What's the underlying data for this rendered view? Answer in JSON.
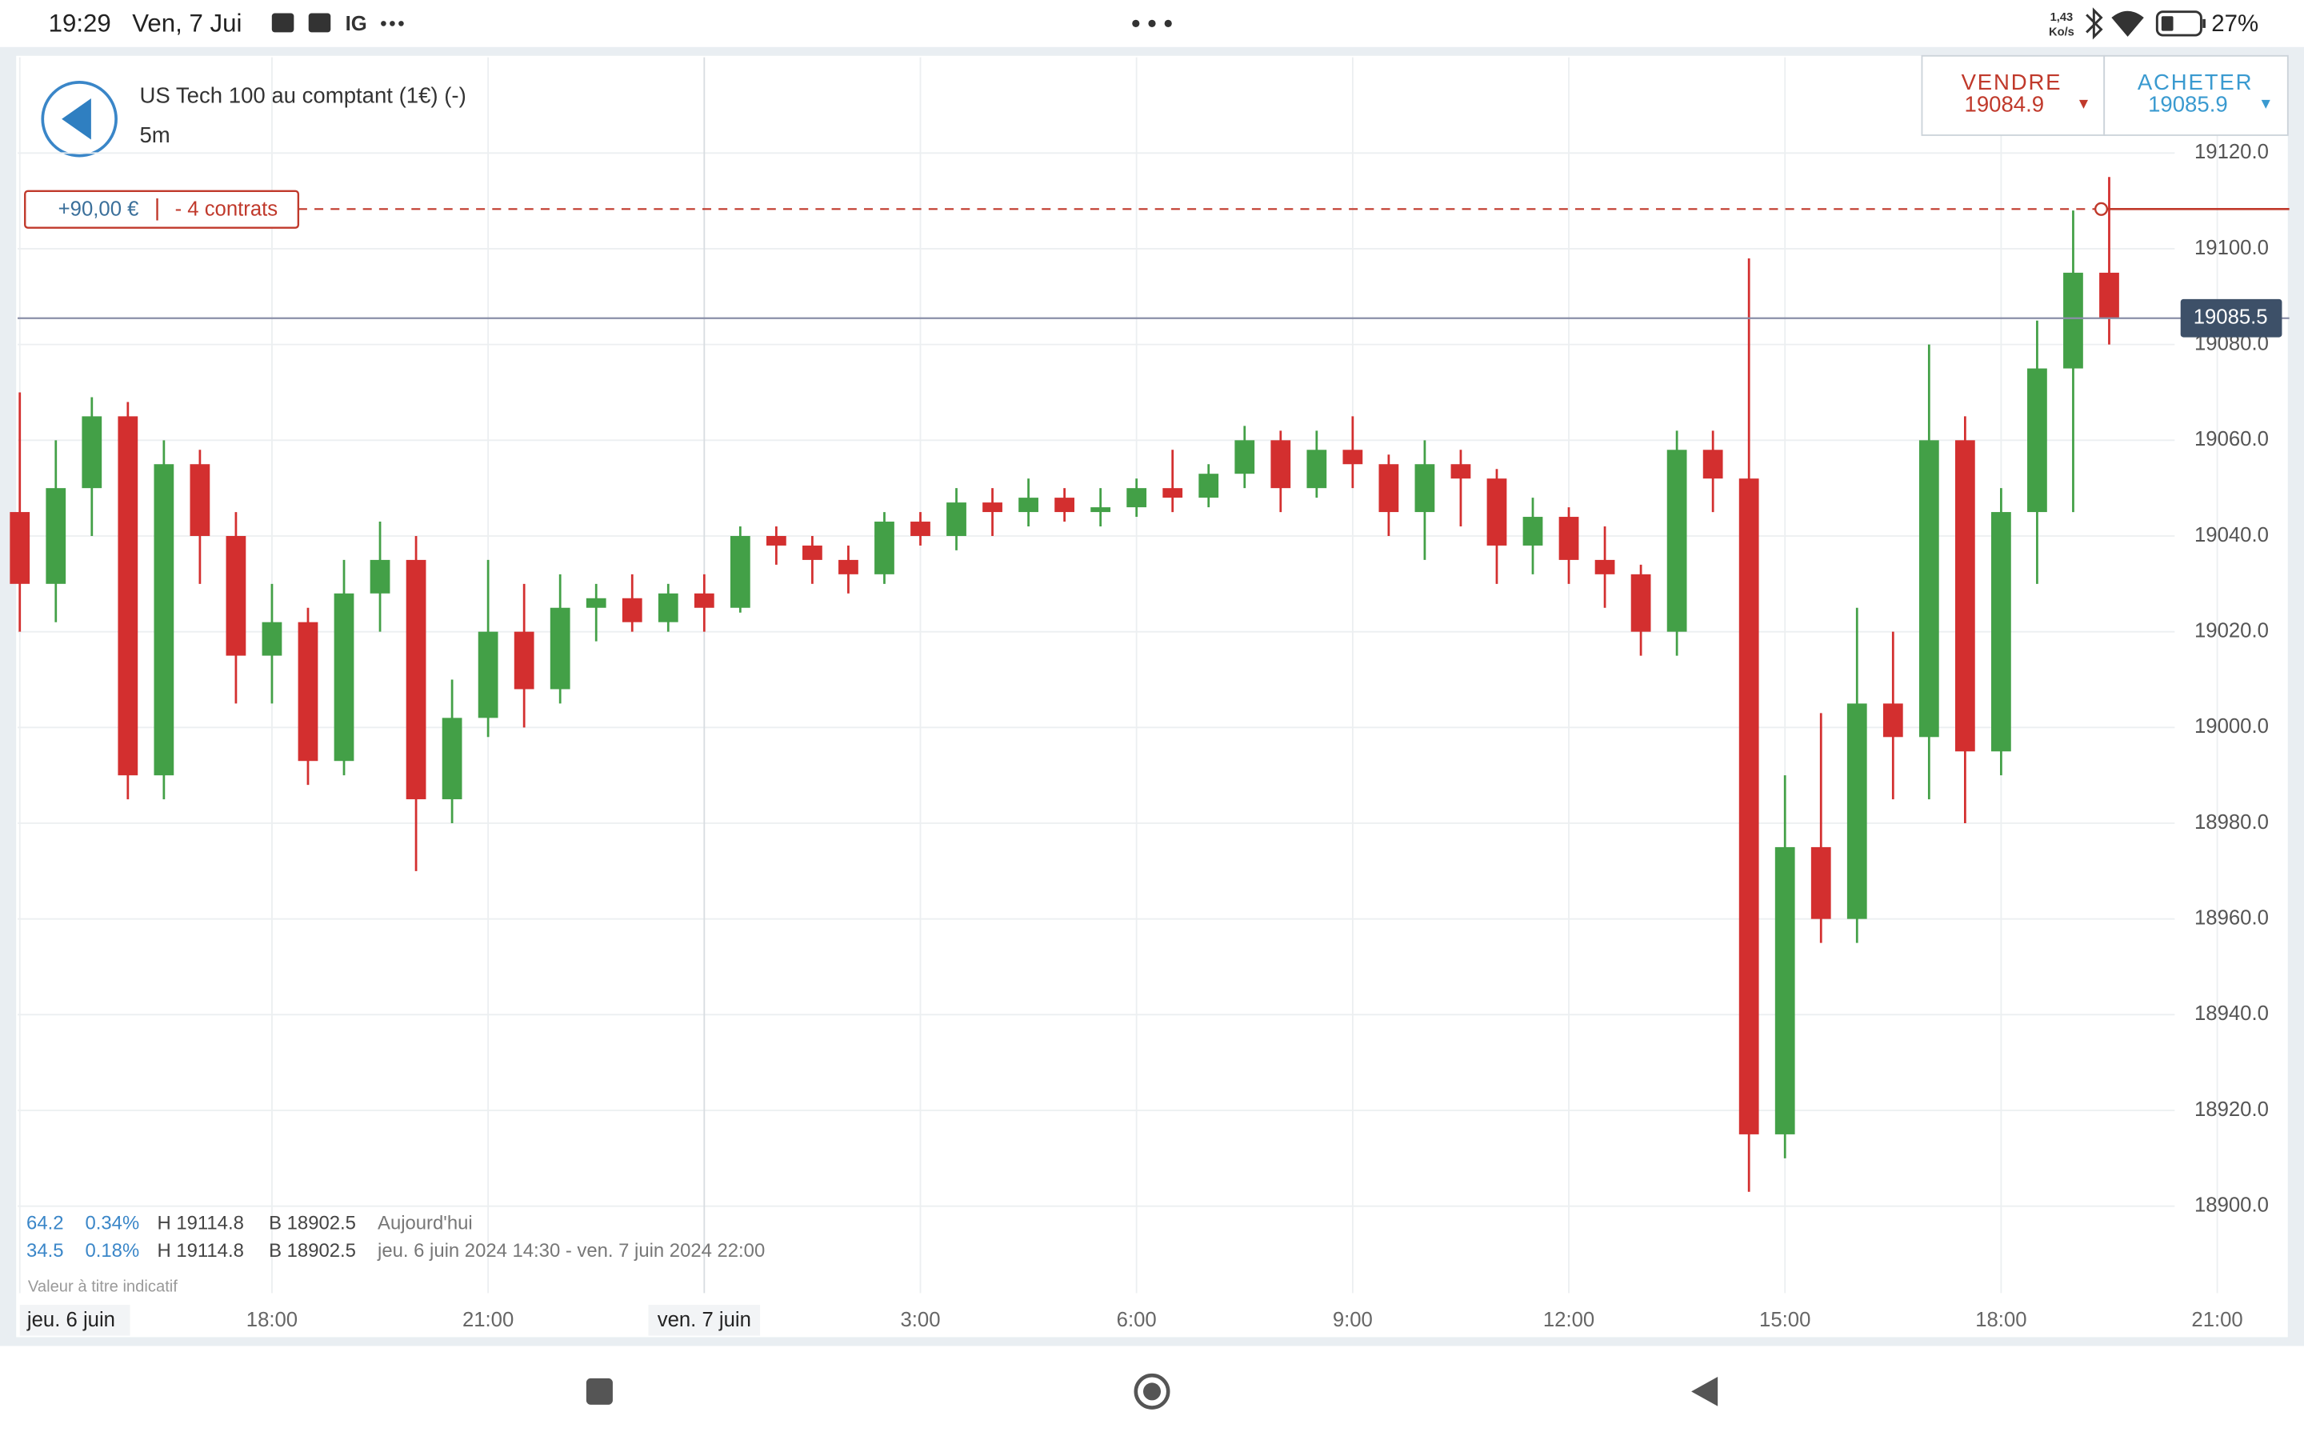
{
  "status_bar": {
    "time": "19:29",
    "date": "Ven, 7 Jui",
    "app": "IG",
    "speed": "1,43",
    "speed_unit": "Ko/s",
    "battery": "27%"
  },
  "header": {
    "title": "US Tech 100 au comptant (1€) (-)",
    "interval": "5m"
  },
  "trade": {
    "sell_label": "VENDRE",
    "sell_price": "19084.9",
    "buy_label": "ACHETER",
    "buy_price": "19085.9"
  },
  "position": {
    "pnl": "+90,00 €",
    "size": "- 4 contrats"
  },
  "stats": {
    "rows": [
      [
        "64.2",
        "0.34%",
        "H 19114.8",
        "B 18902.5",
        "Aujourd'hui"
      ],
      [
        "34.5",
        "0.18%",
        "H 19114.8",
        "B 18902.5",
        "jeu. 6 juin 2024 14:30 - ven. 7 juin 2024 22:00"
      ]
    ],
    "note": "Valeur à titre indicatif"
  },
  "chart_data": {
    "type": "candlestick",
    "grid": true,
    "xlim": [
      14.47,
      46
    ],
    "ylim": [
      18880,
      19140
    ],
    "xticks": [
      {
        "value": 14.5,
        "label": "jeu. 6 juin"
      },
      {
        "value": 18,
        "label": "18:00"
      },
      {
        "value": 21,
        "label": "21:00"
      },
      {
        "value": 24,
        "label": "ven. 7 juin"
      },
      {
        "value": 27,
        "label": "3:00"
      },
      {
        "value": 30,
        "label": "6:00"
      },
      {
        "value": 33,
        "label": "9:00"
      },
      {
        "value": 36,
        "label": "12:00"
      },
      {
        "value": 39,
        "label": "15:00"
      },
      {
        "value": 42,
        "label": "18:00"
      },
      {
        "value": 45,
        "label": "21:00"
      }
    ],
    "yticks": [
      {
        "value": 18900,
        "label": "18900.0"
      },
      {
        "value": 18920,
        "label": "18920.0"
      },
      {
        "value": 18940,
        "label": "18940.0"
      },
      {
        "value": 18960,
        "label": "18960.0"
      },
      {
        "value": 18980,
        "label": "18980.0"
      },
      {
        "value": 19000,
        "label": "19000.0"
      },
      {
        "value": 19020,
        "label": "19020.0"
      },
      {
        "value": 19040,
        "label": "19040.0"
      },
      {
        "value": 19060,
        "label": "19060.0"
      },
      {
        "value": 19080,
        "label": "19080.0"
      },
      {
        "value": 19100,
        "label": "19100.0"
      },
      {
        "value": 19120,
        "label": "19120.0"
      }
    ],
    "up_color": "#43a047",
    "down_color": "#d32f2f",
    "current_price": {
      "value": 19085.5,
      "label": "19085.5"
    },
    "position_level": 19108.3,
    "x": [
      14.5,
      15,
      15.5,
      16,
      16.5,
      17,
      17.5,
      18,
      18.5,
      19,
      19.5,
      20,
      20.5,
      21,
      21.5,
      22,
      22.5,
      23,
      23.5,
      24,
      24.5,
      25,
      25.5,
      26,
      26.5,
      27,
      27.5,
      28,
      28.5,
      29,
      29.5,
      30,
      30.5,
      31,
      31.5,
      32,
      32.5,
      33,
      33.5,
      34,
      34.5,
      35,
      35.5,
      36,
      36.5,
      37,
      37.5,
      38,
      38.5,
      39,
      39.5,
      40,
      40.5,
      41,
      41.5,
      42,
      42.5,
      43,
      43.5
    ],
    "open": [
      19045,
      19030,
      19050,
      19065,
      18990,
      19055,
      19040,
      19015,
      19022,
      18993,
      19028,
      19035,
      18985,
      19002,
      19020,
      19008,
      19025,
      19027,
      19022,
      19028,
      19025,
      19040,
      19038,
      19035,
      19032,
      19043,
      19040,
      19047,
      19045,
      19048,
      19045,
      19046,
      19050,
      19048,
      19053,
      19060,
      19050,
      19058,
      19055,
      19045,
      19055,
      19052,
      19038,
      19044,
      19035,
      19032,
      19020,
      19058,
      19052,
      18915,
      18975,
      18960,
      19005,
      18998,
      19060,
      18995,
      19045,
      19075,
      19095
    ],
    "high": [
      19070,
      19060,
      19069,
      19068,
      19060,
      19058,
      19045,
      19030,
      19025,
      19035,
      19043,
      19040,
      19010,
      19035,
      19030,
      19032,
      19030,
      19032,
      19030,
      19032,
      19042,
      19042,
      19040,
      19038,
      19045,
      19045,
      19050,
      19050,
      19052,
      19050,
      19050,
      19052,
      19058,
      19055,
      19063,
      19062,
      19062,
      19065,
      19057,
      19060,
      19058,
      19054,
      19048,
      19046,
      19042,
      19034,
      19062,
      19062,
      19098,
      18990,
      19003,
      19025,
      19020,
      19080,
      19065,
      19050,
      19085,
      19108,
      19115
    ],
    "low": [
      19020,
      19022,
      19040,
      18985,
      18985,
      19030,
      19005,
      19005,
      18988,
      18990,
      19020,
      18970,
      18980,
      18998,
      19000,
      19005,
      19018,
      19020,
      19020,
      19020,
      19024,
      19034,
      19030,
      19028,
      19030,
      19038,
      19037,
      19040,
      19042,
      19043,
      19042,
      19044,
      19045,
      19046,
      19050,
      19045,
      19048,
      19050,
      19040,
      19035,
      19042,
      19030,
      19032,
      19030,
      19025,
      19015,
      19015,
      19045,
      18903,
      18910,
      18955,
      18955,
      18985,
      18985,
      18980,
      18990,
      19030,
      19045,
      19080
    ],
    "close": [
      19030,
      19050,
      19065,
      18990,
      19055,
      19040,
      19015,
      19022,
      18993,
      19028,
      19035,
      18985,
      19002,
      19020,
      19008,
      19025,
      19027,
      19022,
      19028,
      19025,
      19040,
      19038,
      19035,
      19032,
      19043,
      19040,
      19047,
      19045,
      19048,
      19045,
      19046,
      19050,
      19048,
      19053,
      19060,
      19050,
      19058,
      19055,
      19045,
      19055,
      19052,
      19038,
      19044,
      19035,
      19032,
      19020,
      19058,
      19052,
      18915,
      18975,
      18960,
      19005,
      18998,
      19060,
      18995,
      19045,
      19075,
      19095,
      19085.5
    ]
  }
}
